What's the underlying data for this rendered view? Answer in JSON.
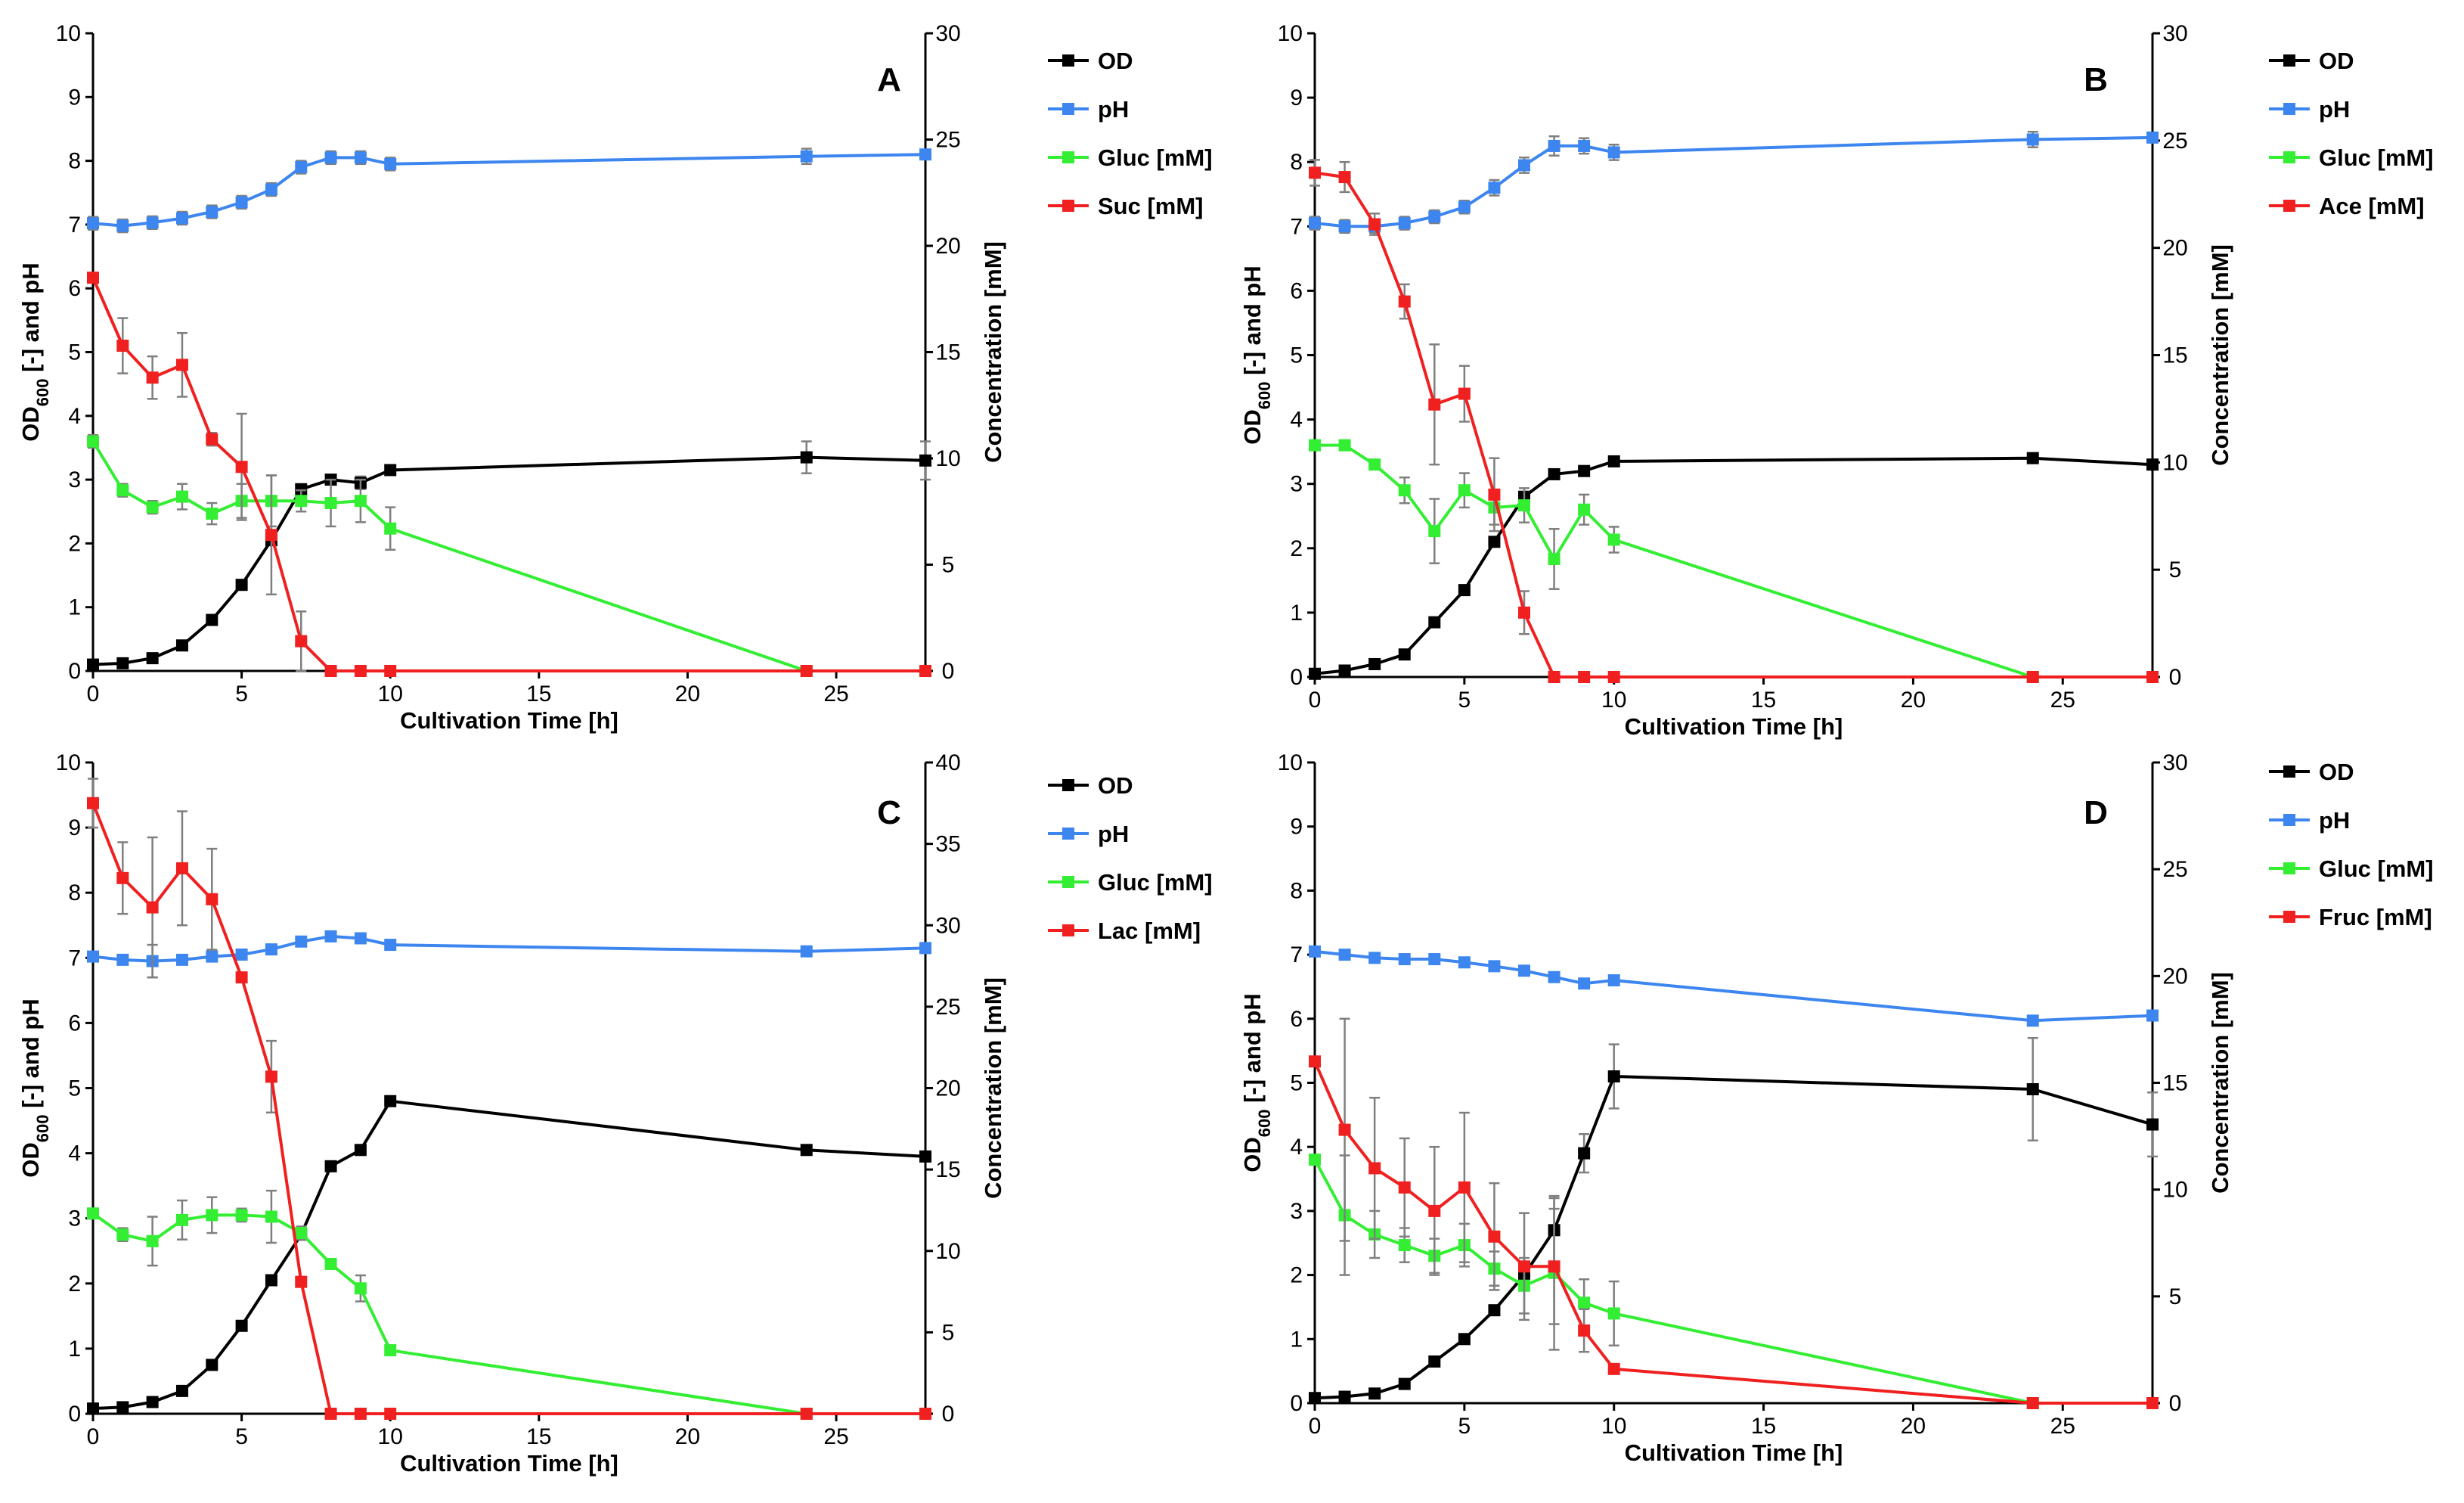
{
  "chart_data": [
    {
      "type": "line",
      "panel": "A",
      "xlabel": "Cultivation Time [h]",
      "ylabel_left": "OD600 [-] and pH",
      "ylabel_left_main": "OD",
      "ylabel_left_sub": "600",
      "ylabel_left_rest": " [-] and pH",
      "ylabel_right": "Concentration [mM]",
      "xlim": [
        0,
        28
      ],
      "ylim_left": [
        0,
        10
      ],
      "ylim_right": [
        0,
        30
      ],
      "xticks": [
        0,
        5,
        10,
        15,
        20,
        25
      ],
      "yticks_left": [
        0,
        1,
        2,
        3,
        4,
        5,
        6,
        7,
        8,
        9,
        10
      ],
      "yticks_right": [
        0,
        5,
        10,
        15,
        20,
        25,
        30
      ],
      "series": [
        {
          "name": "OD",
          "color": "#000000",
          "axis": "left",
          "x": [
            0,
            1,
            2,
            3,
            4,
            5,
            6,
            7,
            8,
            9,
            10,
            24,
            28
          ],
          "y": [
            0.1,
            0.12,
            0.2,
            0.4,
            0.8,
            1.35,
            2.05,
            2.85,
            3.0,
            2.95,
            3.15,
            3.35,
            3.3
          ],
          "err": [
            0,
            0,
            0,
            0,
            0,
            0,
            0,
            0,
            0,
            0.1,
            0,
            0.25,
            0.3
          ]
        },
        {
          "name": "pH",
          "color": "#3d86f0",
          "axis": "left",
          "x": [
            0,
            1,
            2,
            3,
            4,
            5,
            6,
            7,
            8,
            9,
            10,
            24,
            28
          ],
          "y": [
            7.02,
            6.98,
            7.03,
            7.1,
            7.2,
            7.35,
            7.55,
            7.9,
            8.05,
            8.05,
            7.95,
            8.07,
            8.1
          ],
          "err": [
            0.1,
            0.1,
            0.1,
            0.1,
            0.1,
            0.1,
            0.1,
            0.1,
            0.1,
            0.1,
            0.1,
            0.12,
            0
          ]
        },
        {
          "name": "Gluc [mM]",
          "color": "#33ee33",
          "axis": "right",
          "x": [
            0,
            1,
            2,
            3,
            4,
            5,
            6,
            7,
            8,
            9,
            10,
            24,
            28
          ],
          "y": [
            10.8,
            8.5,
            7.7,
            8.2,
            7.4,
            8.0,
            8.0,
            8.0,
            7.9,
            8.0,
            6.7,
            0,
            0
          ],
          "err": [
            0.3,
            0.3,
            0.3,
            0.6,
            0.5,
            0.8,
            1.2,
            0.5,
            1.1,
            1.0,
            1.0,
            0,
            0
          ]
        },
        {
          "name": "Suc [mM]",
          "color": "#f02020",
          "axis": "right",
          "x": [
            0,
            1,
            2,
            3,
            4,
            5,
            6,
            7,
            8,
            9,
            10,
            24,
            28
          ],
          "y": [
            18.5,
            15.3,
            13.8,
            14.4,
            10.9,
            9.6,
            6.4,
            1.4,
            0,
            0,
            0,
            0,
            0
          ],
          "err": [
            0,
            1.3,
            1.0,
            1.5,
            0.3,
            2.5,
            2.8,
            1.4,
            0,
            0,
            0,
            0,
            0
          ]
        }
      ],
      "legend": [
        "OD",
        "pH",
        "Gluc [mM]",
        "Suc [mM]"
      ]
    },
    {
      "type": "line",
      "panel": "B",
      "xlabel": "Cultivation Time [h]",
      "ylabel_left": "OD600 [-] and pH",
      "ylabel_left_main": "OD",
      "ylabel_left_sub": "600",
      "ylabel_left_rest": " [-] and pH",
      "ylabel_right": "Concentration [mM]",
      "xlim": [
        0,
        28
      ],
      "ylim_left": [
        0,
        10
      ],
      "ylim_right": [
        0,
        30
      ],
      "xticks": [
        0,
        5,
        10,
        15,
        20,
        25
      ],
      "yticks_left": [
        0,
        1,
        2,
        3,
        4,
        5,
        6,
        7,
        8,
        9,
        10
      ],
      "yticks_right": [
        0,
        5,
        10,
        15,
        20,
        25,
        30
      ],
      "series": [
        {
          "name": "OD",
          "color": "#000000",
          "axis": "left",
          "x": [
            0,
            1,
            2,
            3,
            4,
            5,
            6,
            7,
            8,
            9,
            10,
            24,
            28
          ],
          "y": [
            0.05,
            0.1,
            0.2,
            0.35,
            0.85,
            1.35,
            2.1,
            2.8,
            3.15,
            3.2,
            3.35,
            3.4,
            3.3
          ],
          "err": [
            0,
            0,
            0,
            0,
            0,
            0,
            0,
            0,
            0,
            0,
            0,
            0,
            0
          ]
        },
        {
          "name": "pH",
          "color": "#3d86f0",
          "axis": "left",
          "x": [
            0,
            1,
            2,
            3,
            4,
            5,
            6,
            7,
            8,
            9,
            10,
            24,
            28
          ],
          "y": [
            7.05,
            7.0,
            7.0,
            7.05,
            7.15,
            7.3,
            7.6,
            7.95,
            8.25,
            8.25,
            8.15,
            8.35,
            8.38
          ],
          "err": [
            0.1,
            0.1,
            0.1,
            0.1,
            0.1,
            0.1,
            0.12,
            0.12,
            0.15,
            0.12,
            0.12,
            0.12,
            0
          ]
        },
        {
          "name": "Gluc [mM]",
          "color": "#33ee33",
          "axis": "right",
          "x": [
            0,
            1,
            2,
            3,
            4,
            5,
            6,
            7,
            8,
            9,
            10,
            24,
            28
          ],
          "y": [
            10.8,
            10.8,
            9.9,
            8.7,
            6.8,
            8.7,
            7.9,
            8.0,
            5.5,
            7.8,
            6.4,
            0,
            0
          ],
          "err": [
            0,
            0,
            0,
            0.6,
            1.5,
            0.8,
            0.8,
            0.8,
            1.4,
            0.7,
            0.6,
            0,
            0
          ]
        },
        {
          "name": "Ace [mM]",
          "color": "#f02020",
          "axis": "right",
          "x": [
            0,
            1,
            2,
            3,
            4,
            5,
            6,
            7,
            8,
            9,
            10,
            24,
            28
          ],
          "y": [
            23.5,
            23.3,
            21.1,
            17.5,
            12.7,
            13.2,
            8.5,
            3.0,
            0,
            0,
            0,
            0,
            0
          ],
          "err": [
            0.6,
            0.7,
            0.5,
            0.8,
            2.8,
            1.3,
            1.7,
            1.0,
            0,
            0,
            0,
            0,
            0
          ]
        }
      ],
      "legend": [
        "OD",
        "pH",
        "Gluc [mM]",
        "Ace [mM]"
      ]
    },
    {
      "type": "line",
      "panel": "C",
      "xlabel": "Cultivation Time [h]",
      "ylabel_left": "OD600 [-] and pH",
      "ylabel_left_main": "OD",
      "ylabel_left_sub": "600",
      "ylabel_left_rest": " [-] and pH",
      "ylabel_right": "Concentration [mM]",
      "xlim": [
        0,
        28
      ],
      "ylim_left": [
        0,
        10
      ],
      "ylim_right": [
        0,
        40
      ],
      "xticks": [
        0,
        5,
        10,
        15,
        20,
        25
      ],
      "yticks_left": [
        0,
        1,
        2,
        3,
        4,
        5,
        6,
        7,
        8,
        9,
        10
      ],
      "yticks_right": [
        0,
        5,
        10,
        15,
        20,
        25,
        30,
        35,
        40
      ],
      "series": [
        {
          "name": "OD",
          "color": "#000000",
          "axis": "left",
          "x": [
            0,
            1,
            2,
            3,
            4,
            5,
            6,
            7,
            8,
            9,
            10,
            24,
            28
          ],
          "y": [
            0.08,
            0.1,
            0.18,
            0.35,
            0.75,
            1.35,
            2.05,
            2.75,
            3.8,
            4.05,
            4.8,
            4.05,
            3.95
          ],
          "err": [
            0,
            0,
            0,
            0,
            0,
            0,
            0,
            0,
            0,
            0,
            0,
            0,
            0
          ]
        },
        {
          "name": "pH",
          "color": "#3d86f0",
          "axis": "left",
          "x": [
            0,
            1,
            2,
            3,
            4,
            5,
            6,
            7,
            8,
            9,
            10,
            24,
            28
          ],
          "y": [
            7.02,
            6.97,
            6.95,
            6.97,
            7.02,
            7.05,
            7.13,
            7.25,
            7.33,
            7.3,
            7.2,
            7.1,
            7.15
          ],
          "err": [
            0,
            0.05,
            0.25,
            0.05,
            0.05,
            0.05,
            0.05,
            0.05,
            0.05,
            0.05,
            0,
            0,
            0
          ]
        },
        {
          "name": "Gluc [mM]",
          "color": "#33ee33",
          "axis": "right",
          "x": [
            0,
            1,
            2,
            3,
            4,
            5,
            6,
            7,
            8,
            9,
            10,
            24,
            28
          ],
          "y": [
            12.3,
            11.0,
            10.6,
            11.9,
            12.2,
            12.2,
            12.1,
            11.1,
            9.2,
            7.7,
            3.9,
            0,
            0
          ],
          "err": [
            0.2,
            0.4,
            1.5,
            1.2,
            1.1,
            0.4,
            1.6,
            0.4,
            0.3,
            0.8,
            0,
            0,
            0
          ]
        },
        {
          "name": "Lac [mM]",
          "color": "#f02020",
          "axis": "right",
          "x": [
            0,
            1,
            2,
            3,
            4,
            5,
            6,
            7,
            8,
            9,
            10,
            24,
            28
          ],
          "y": [
            37.5,
            32.9,
            31.1,
            33.5,
            31.6,
            26.8,
            20.7,
            8.1,
            0,
            0,
            0,
            0,
            0
          ],
          "err": [
            1.5,
            2.2,
            4.3,
            3.5,
            3.1,
            0,
            2.2,
            0,
            0,
            0,
            0,
            0,
            0
          ]
        }
      ],
      "legend": [
        "OD",
        "pH",
        "Gluc [mM]",
        "Lac [mM]"
      ]
    },
    {
      "type": "line",
      "panel": "D",
      "xlabel": "Cultivation Time [h]",
      "ylabel_left": "OD600 [-] and pH",
      "ylabel_left_main": "OD",
      "ylabel_left_sub": "600",
      "ylabel_left_rest": " [-] and pH",
      "ylabel_right": "Concentration [mM]",
      "xlim": [
        0,
        28
      ],
      "ylim_left": [
        0,
        10
      ],
      "ylim_right": [
        0,
        30
      ],
      "xticks": [
        0,
        5,
        10,
        15,
        20,
        25
      ],
      "yticks_left": [
        0,
        1,
        2,
        3,
        4,
        5,
        6,
        7,
        8,
        9,
        10
      ],
      "yticks_right": [
        0,
        5,
        10,
        15,
        20,
        25,
        30
      ],
      "series": [
        {
          "name": "OD",
          "color": "#000000",
          "axis": "left",
          "x": [
            0,
            1,
            2,
            3,
            4,
            5,
            6,
            7,
            8,
            9,
            10,
            24,
            28
          ],
          "y": [
            0.08,
            0.1,
            0.15,
            0.3,
            0.65,
            1.0,
            1.45,
            2.0,
            2.7,
            3.9,
            5.1,
            4.9,
            4.35
          ],
          "err": [
            0,
            0,
            0,
            0,
            0,
            0,
            0,
            0,
            0.5,
            0.3,
            0.5,
            0.8,
            0.5
          ]
        },
        {
          "name": "pH",
          "color": "#3d86f0",
          "axis": "left",
          "x": [
            0,
            1,
            2,
            3,
            4,
            5,
            6,
            7,
            8,
            9,
            10,
            24,
            28
          ],
          "y": [
            7.05,
            7.0,
            6.95,
            6.93,
            6.93,
            6.88,
            6.82,
            6.75,
            6.65,
            6.55,
            6.6,
            5.97,
            6.05
          ],
          "err": [
            0,
            0,
            0,
            0,
            0,
            0,
            0,
            0,
            0,
            0,
            0,
            0,
            0
          ]
        },
        {
          "name": "Gluc [mM]",
          "color": "#33ee33",
          "axis": "right",
          "x": [
            0,
            1,
            2,
            3,
            4,
            5,
            6,
            7,
            8,
            9,
            10,
            24,
            28
          ],
          "y": [
            11.4,
            8.8,
            7.9,
            7.4,
            6.9,
            7.4,
            6.3,
            5.5,
            6.1,
            4.7,
            4.2,
            0,
            0
          ],
          "err": [
            0.2,
            2.8,
            1.1,
            0.8,
            0.8,
            1.0,
            0.8,
            1.3,
            3.6,
            1.1,
            1.5,
            0,
            0
          ]
        },
        {
          "name": "Fruc [mM]",
          "color": "#f02020",
          "axis": "right",
          "x": [
            0,
            1,
            2,
            3,
            4,
            5,
            6,
            7,
            8,
            9,
            10,
            24,
            28
          ],
          "y": [
            16.0,
            12.8,
            11.0,
            10.1,
            9.0,
            10.1,
            7.8,
            6.4,
            6.4,
            3.4,
            1.6,
            0,
            0
          ],
          "err": [
            0,
            5.2,
            3.3,
            2.3,
            3.0,
            3.5,
            2.5,
            2.5,
            2.7,
            1.0,
            0,
            0,
            0
          ]
        }
      ],
      "legend": [
        "OD",
        "pH",
        "Gluc [mM]",
        "Fruc [mM]"
      ]
    }
  ]
}
